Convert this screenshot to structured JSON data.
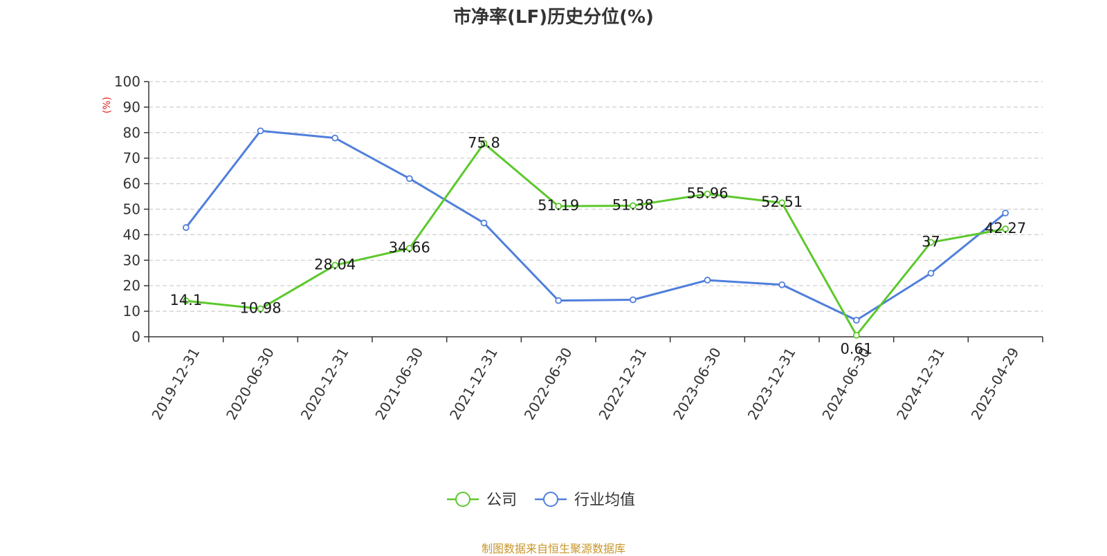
{
  "title": "市净率(LF)历史分位(%)",
  "source": "制图数据来自恒生聚源数据库",
  "colors": {
    "company": "#5cc82c",
    "industry": "#4f7fdc",
    "unit": "#e02020",
    "grid": "#cccccc",
    "axis": "#333333"
  },
  "chart_data": {
    "type": "line",
    "title": "市净率(LF)历史分位(%)",
    "ylabel": "(%)",
    "ylim": [
      0,
      100
    ],
    "yticks": [
      0,
      10,
      20,
      30,
      40,
      50,
      60,
      70,
      80,
      90,
      100
    ],
    "grid": true,
    "legend": "bottom-center",
    "categories": [
      "2019-12-31",
      "2020-06-30",
      "2020-12-31",
      "2021-06-30",
      "2021-12-31",
      "2022-06-30",
      "2022-12-31",
      "2023-06-30",
      "2023-12-31",
      "2024-06-30",
      "2024-12-31",
      "2025-04-29"
    ],
    "series": [
      {
        "name": "公司",
        "values": [
          14.1,
          10.98,
          28.04,
          34.66,
          75.8,
          51.19,
          51.38,
          55.96,
          52.51,
          0.61,
          37,
          42.27
        ],
        "labels": [
          "14.1",
          "10.98",
          "28.04",
          "34.66",
          "75.8",
          "51.19",
          "51.38",
          "55.96",
          "52.51",
          "0.61",
          "37",
          "42.27"
        ]
      },
      {
        "name": "行业均值",
        "values": [
          42.8,
          80.7,
          77.9,
          62.0,
          44.6,
          14.2,
          14.5,
          22.2,
          20.4,
          6.5,
          24.9,
          48.5
        ]
      }
    ]
  }
}
